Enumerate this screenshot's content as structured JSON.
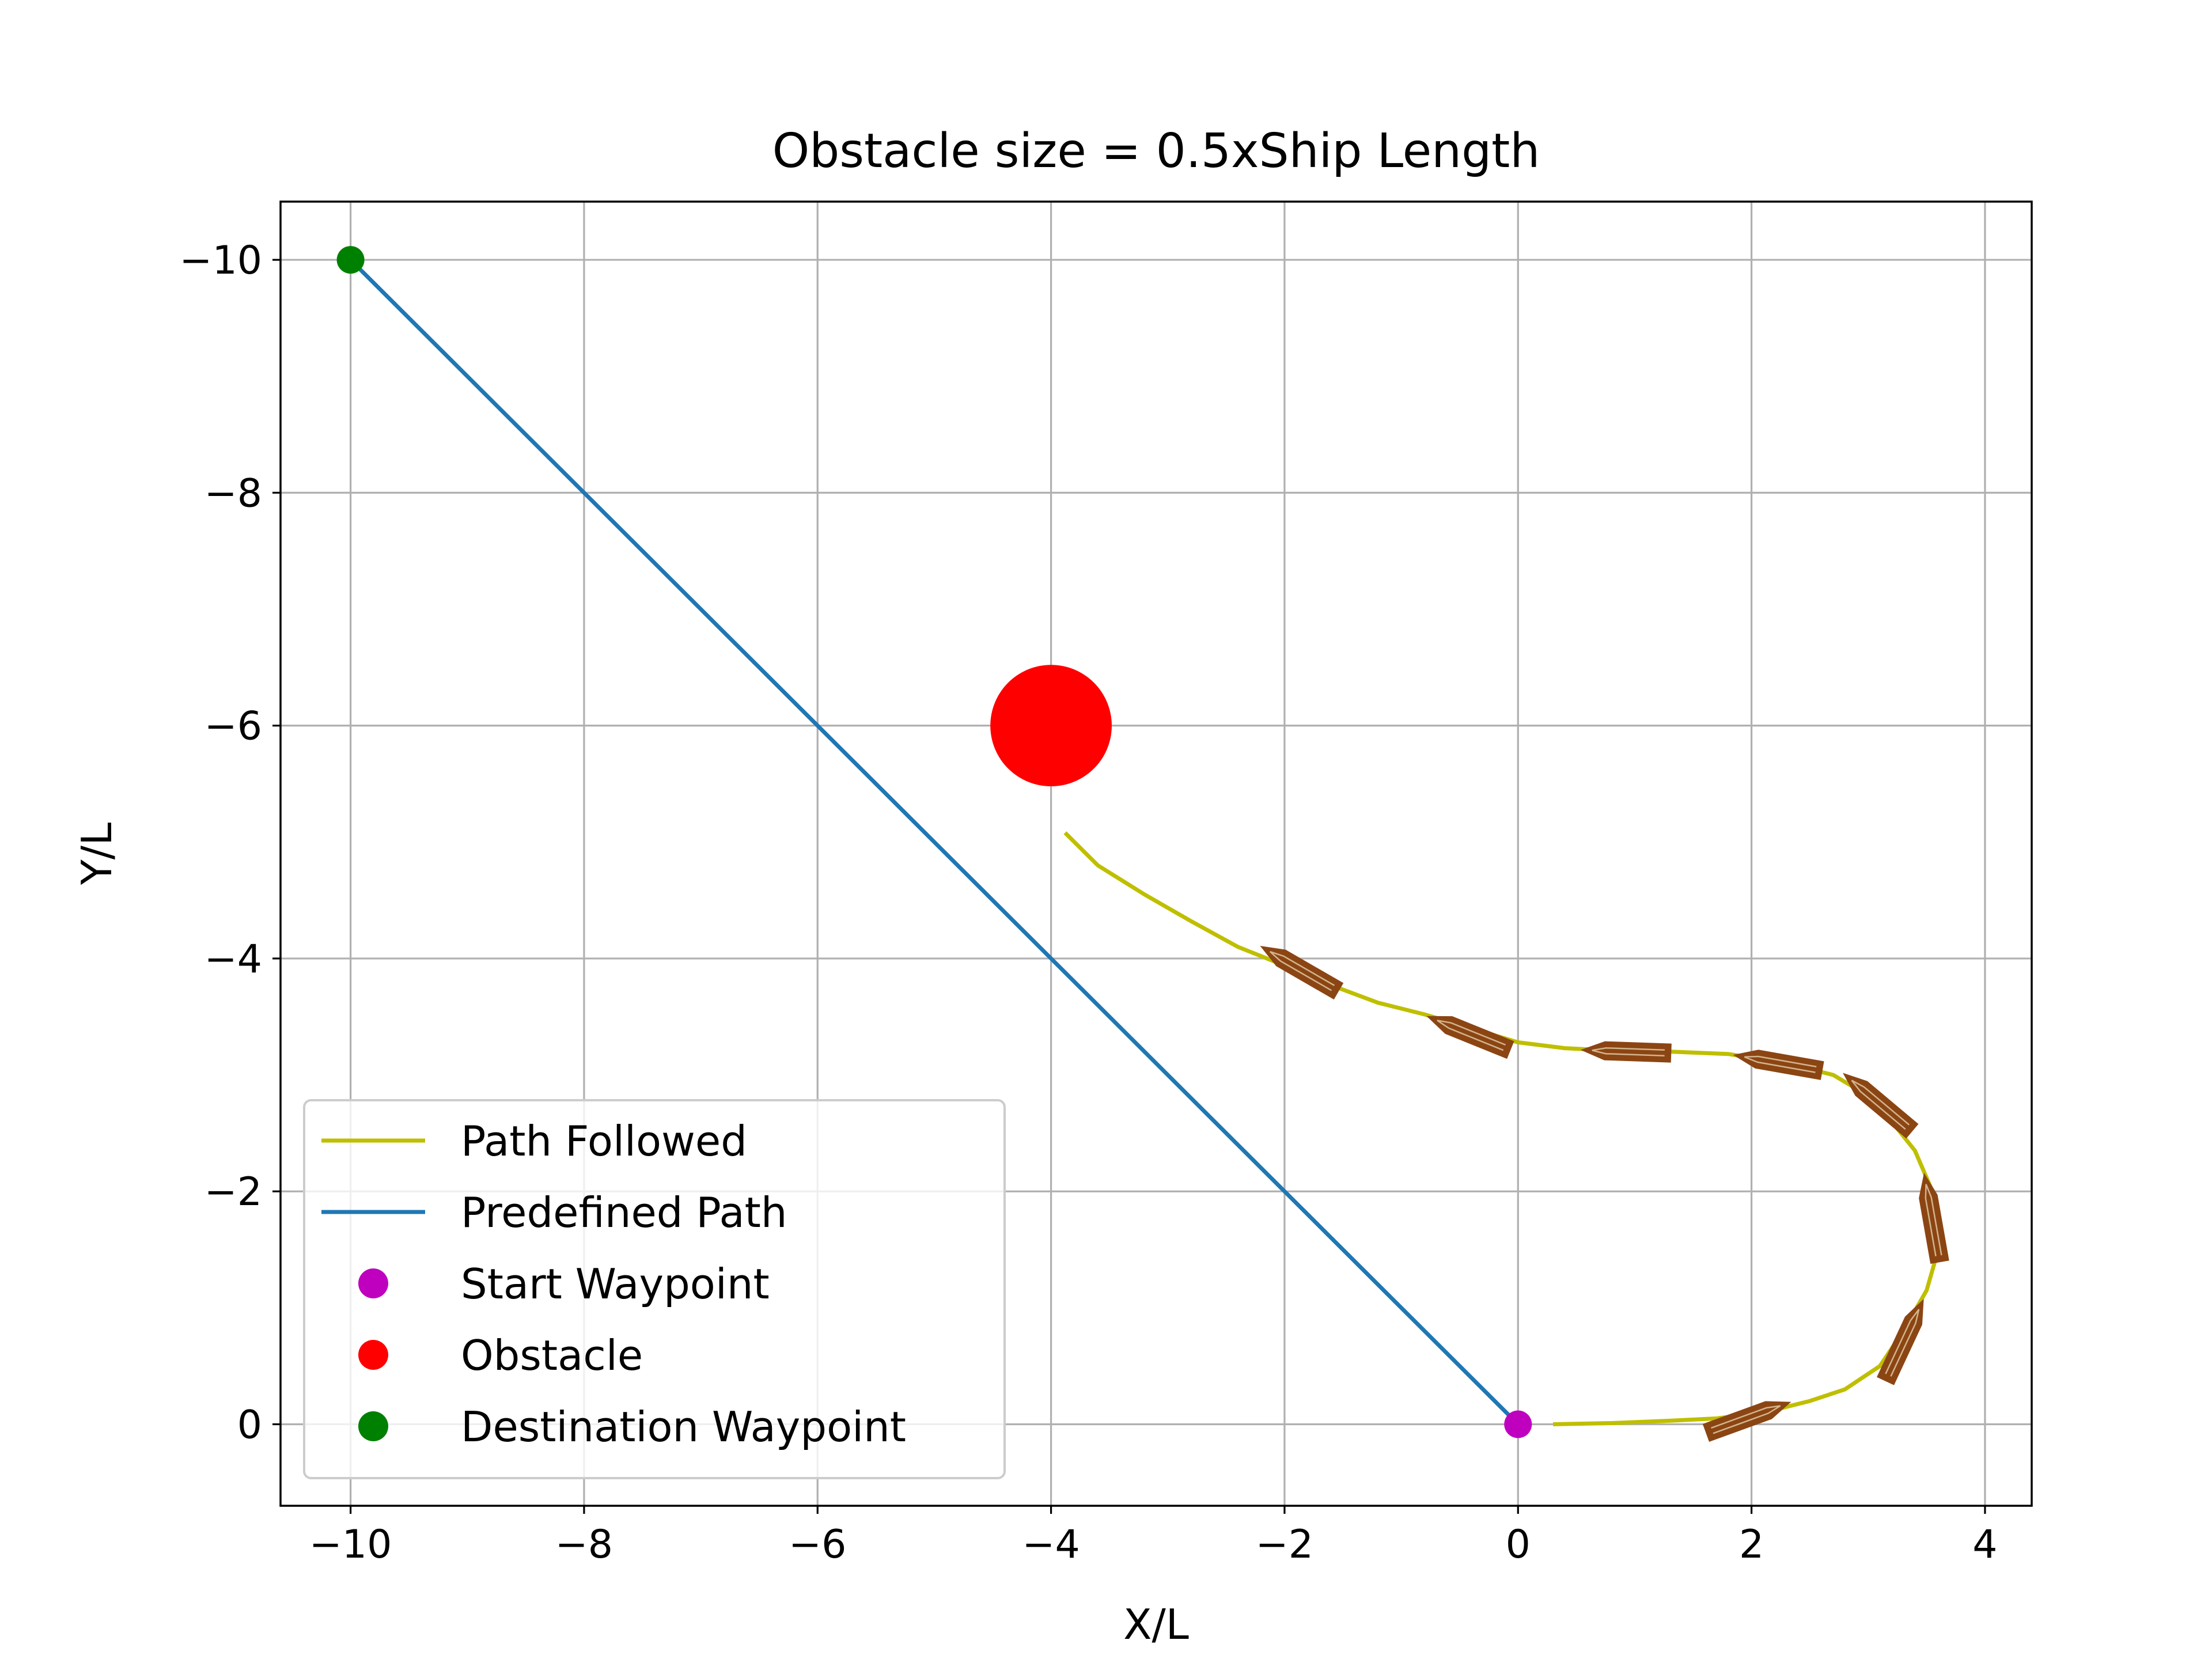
{
  "chart_data": {
    "type": "line",
    "title": "Obstacle size = 0.5xShip Length",
    "xlabel": "X/L",
    "ylabel": "Y/L",
    "xlim": [
      -10.6,
      4.4
    ],
    "ylim": [
      0.7,
      -10.5
    ],
    "y_inverted": true,
    "grid": true,
    "x_ticks": [
      -10,
      -8,
      -6,
      -4,
      -2,
      0,
      2,
      4
    ],
    "x_tick_labels": [
      "−10",
      "−8",
      "−6",
      "−4",
      "−2",
      "0",
      "2",
      "4"
    ],
    "y_ticks": [
      -10,
      -8,
      -6,
      -4,
      -2,
      0
    ],
    "y_tick_labels": [
      "−10",
      "−8",
      "−6",
      "−4",
      "−2",
      "0"
    ],
    "legend_position": "lower-left",
    "series": [
      {
        "name": "Path Followed",
        "kind": "line",
        "color": "#bfbf00",
        "x": [
          0.3,
          0.8,
          1.3,
          1.7,
          2.1,
          2.5,
          2.8,
          3.1,
          3.3,
          3.5,
          3.6,
          3.55,
          3.4,
          3.2,
          2.95,
          2.7,
          2.3,
          1.8,
          1.3,
          0.8,
          0.4,
          0.0,
          -0.4,
          -0.8,
          -1.2,
          -1.6,
          -2.0,
          -2.4,
          -2.8,
          -3.2,
          -3.6,
          -3.88
        ],
        "y": [
          0.0,
          -0.01,
          -0.03,
          -0.05,
          -0.1,
          -0.2,
          -0.3,
          -0.5,
          -0.8,
          -1.15,
          -1.5,
          -2.0,
          -2.35,
          -2.6,
          -2.85,
          -3.0,
          -3.1,
          -3.18,
          -3.2,
          -3.21,
          -3.23,
          -3.28,
          -3.4,
          -3.52,
          -3.62,
          -3.77,
          -3.94,
          -4.1,
          -4.32,
          -4.55,
          -4.8,
          -5.08
        ]
      },
      {
        "name": "Predefined Path",
        "kind": "line",
        "color": "#1f77b4",
        "x": [
          0,
          -10
        ],
        "y": [
          0,
          -10
        ]
      },
      {
        "name": "Start Waypoint",
        "kind": "scatter",
        "color": "#bf00bf",
        "x": [
          0
        ],
        "y": [
          0
        ]
      },
      {
        "name": "Obstacle",
        "kind": "scatter",
        "color": "#ff0000",
        "x": [
          -4
        ],
        "y": [
          -6
        ],
        "radius_data": 0.52
      },
      {
        "name": "Destination Waypoint",
        "kind": "scatter",
        "color": "#008000",
        "x": [
          -10
        ],
        "y": [
          -10
        ]
      }
    ],
    "ship_markers": {
      "color": "#8b4513",
      "outline_color": "#d2b48c",
      "positions": [
        {
          "x": 1.95,
          "y": -0.05,
          "heading_deg": -20
        },
        {
          "x": 3.3,
          "y": -0.7,
          "heading_deg": -65
        },
        {
          "x": 3.55,
          "y": -1.75,
          "heading_deg": -100
        },
        {
          "x": 3.1,
          "y": -2.75,
          "heading_deg": -140
        },
        {
          "x": 2.25,
          "y": -3.1,
          "heading_deg": -170
        },
        {
          "x": 0.95,
          "y": -3.2,
          "heading_deg": -178
        },
        {
          "x": -0.4,
          "y": -3.35,
          "heading_deg": -158
        },
        {
          "x": -1.85,
          "y": -3.9,
          "heading_deg": -150
        }
      ]
    }
  }
}
